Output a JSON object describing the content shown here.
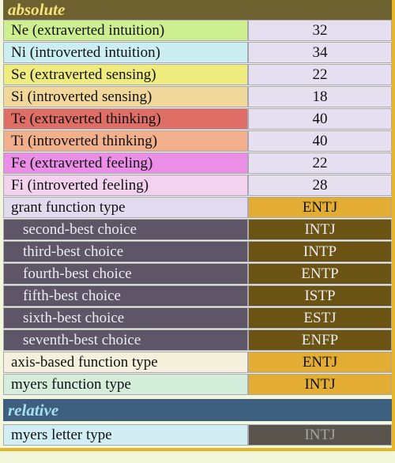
{
  "sections": {
    "absolute": "absolute",
    "relative": "relative"
  },
  "functions": [
    {
      "label": "Ne (extraverted intuition)",
      "value": "32",
      "color": "#cdef8f"
    },
    {
      "label": "Ni (introverted intuition)",
      "value": "34",
      "color": "#cbeef3"
    },
    {
      "label": "Se (extraverted sensing)",
      "value": "22",
      "color": "#efec7f"
    },
    {
      "label": "Si (introverted sensing)",
      "value": "18",
      "color": "#f1d799"
    },
    {
      "label": "Te (extraverted thinking)",
      "value": "40",
      "color": "#df6e66"
    },
    {
      "label": "Ti (introverted thinking)",
      "value": "40",
      "color": "#f2af8c"
    },
    {
      "label": "Fe (extraverted feeling)",
      "value": "22",
      "color": "#ea8ee8"
    },
    {
      "label": "Fi (introverted feeling)",
      "value": "28",
      "color": "#f2d2ee"
    }
  ],
  "grant": {
    "label": "grant function type",
    "value": "ENTJ"
  },
  "choices": [
    {
      "label": "second-best choice",
      "value": "INTJ"
    },
    {
      "label": "third-best choice",
      "value": "INTP"
    },
    {
      "label": "fourth-best choice",
      "value": "ENTP"
    },
    {
      "label": "fifth-best choice",
      "value": "ISTP"
    },
    {
      "label": "sixth-best choice",
      "value": "ESTJ"
    },
    {
      "label": "seventh-best choice",
      "value": "ENFP"
    }
  ],
  "axis": {
    "label": "axis-based function type",
    "value": "ENTJ"
  },
  "myers": {
    "label": "myers function type",
    "value": "INTJ"
  },
  "letter": {
    "label": "myers letter type",
    "value": "INTJ"
  },
  "colors": {
    "value_cell": "#e6dff0",
    "grant_label": "#e2dbef",
    "axis_label": "#f5f0dc",
    "myers_label": "#d5eedc",
    "letter_label": "#d0eef3",
    "gold": "#e3ac33",
    "choice_label": "#5e5667",
    "choice_value": "#6b5413"
  }
}
